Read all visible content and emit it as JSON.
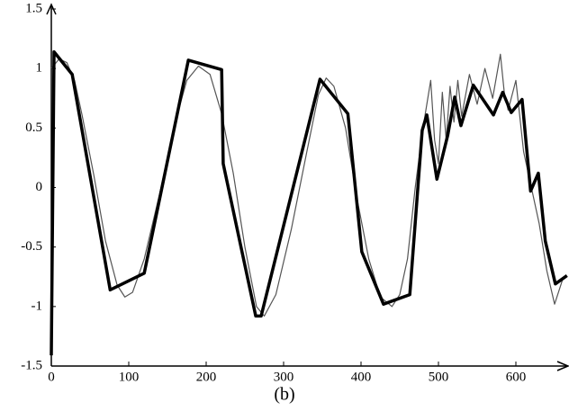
{
  "chart_data": {
    "type": "line",
    "caption": "(b)",
    "xlim": [
      0,
      660
    ],
    "ylim": [
      -1.5,
      1.5
    ],
    "xticks": [
      0,
      100,
      200,
      300,
      400,
      500,
      600
    ],
    "yticks": [
      -1.5,
      -1,
      -0.5,
      0,
      0.5,
      1,
      1.5
    ],
    "grid": false,
    "series": [
      {
        "color": "#555555",
        "width": 1.2,
        "x": [
          0,
          10,
          20,
          30,
          40,
          55,
          70,
          85,
          95,
          105,
          120,
          140,
          160,
          175,
          190,
          205,
          220,
          235,
          250,
          265,
          275,
          290,
          310,
          330,
          345,
          355,
          365,
          380,
          395,
          410,
          425,
          440,
          450,
          460,
          470,
          480,
          490,
          495,
          500,
          505,
          510,
          515,
          520,
          525,
          530,
          540,
          550,
          560,
          570,
          580,
          585,
          590,
          600,
          610,
          620,
          630,
          640,
          650,
          660
        ],
        "values": [
          1.0,
          1.08,
          1.05,
          0.9,
          0.6,
          0.1,
          -0.45,
          -0.82,
          -0.92,
          -0.88,
          -0.6,
          -0.05,
          0.55,
          0.9,
          1.02,
          0.95,
          0.62,
          0.12,
          -0.5,
          -1.0,
          -1.08,
          -0.9,
          -0.35,
          0.3,
          0.78,
          0.92,
          0.85,
          0.5,
          -0.1,
          -0.6,
          -0.92,
          -1.0,
          -0.9,
          -0.6,
          0.0,
          0.5,
          0.9,
          0.4,
          0.2,
          0.8,
          0.4,
          0.85,
          0.55,
          0.9,
          0.6,
          0.95,
          0.7,
          1.0,
          0.75,
          1.12,
          0.8,
          0.65,
          0.9,
          0.3,
          0.0,
          -0.3,
          -0.7,
          -0.98,
          -0.78
        ]
      },
      {
        "color": "#000000",
        "width": 3.5,
        "x": [
          0,
          3.5,
          27,
          76,
          120,
          177,
          220,
          222,
          264,
          271,
          347,
          383,
          401,
          429,
          463,
          479,
          485,
          498,
          512,
          521,
          529,
          545,
          571,
          583,
          594,
          608,
          619,
          629,
          638,
          651,
          666
        ],
        "values": [
          -1.41,
          1.14,
          0.95,
          -0.86,
          -0.72,
          1.07,
          0.99,
          0.2,
          -1.08,
          -1.08,
          0.91,
          0.62,
          -0.54,
          -0.98,
          -0.9,
          0.48,
          0.61,
          0.07,
          0.44,
          0.76,
          0.52,
          0.86,
          0.61,
          0.8,
          0.63,
          0.74,
          -0.03,
          0.12,
          -0.45,
          -0.81,
          -0.74
        ]
      }
    ]
  }
}
